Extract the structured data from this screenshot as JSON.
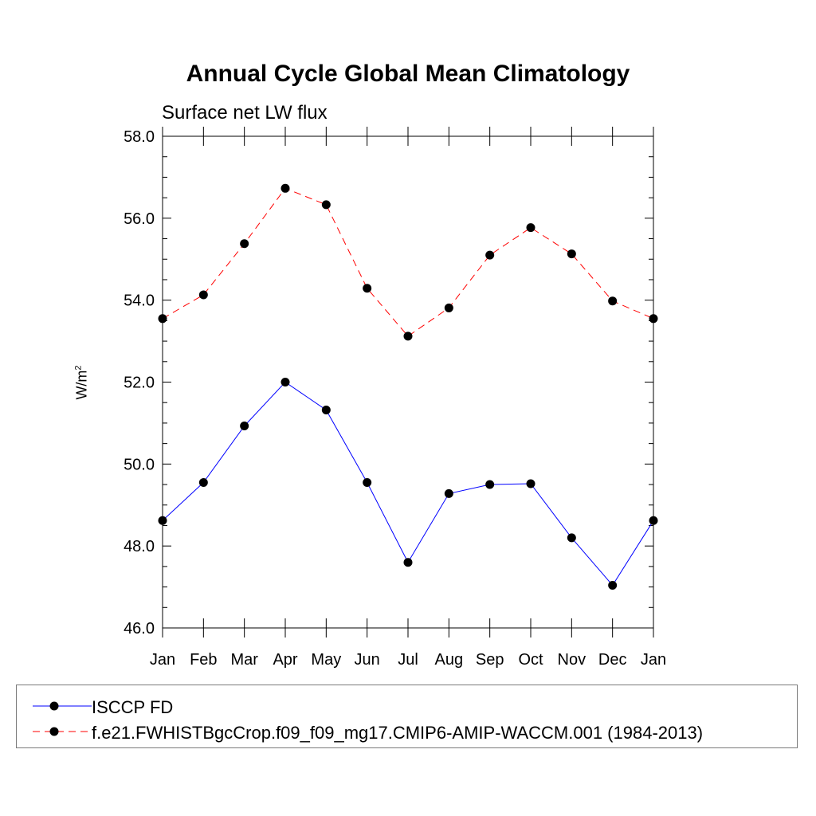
{
  "chart_data": {
    "type": "line",
    "title": "Annual Cycle Global Mean Climatology",
    "subtitle": "Surface net LW flux",
    "ylabel": "W/m",
    "ylabel_superscript": "2",
    "categories": [
      "Jan",
      "Feb",
      "Mar",
      "Apr",
      "May",
      "Jun",
      "Jul",
      "Aug",
      "Sep",
      "Oct",
      "Nov",
      "Dec",
      "Jan"
    ],
    "ylim": [
      46.0,
      58.0
    ],
    "yticks": [
      "46.0",
      "48.0",
      "50.0",
      "52.0",
      "54.0",
      "56.0",
      "58.0"
    ],
    "series": [
      {
        "name": "ISCCP FD",
        "color": "#0000ff",
        "style": "solid",
        "values": [
          48.62,
          49.55,
          50.93,
          52.0,
          51.32,
          49.55,
          47.6,
          49.28,
          49.5,
          49.52,
          48.2,
          47.04,
          48.62
        ]
      },
      {
        "name": "f.e21.FWHISTBgcCrop.f09_f09_mg17.CMIP6-AMIP-WACCM.001 (1984-2013)",
        "color": "#ff0000",
        "style": "dashed",
        "values": [
          53.55,
          54.13,
          55.38,
          56.73,
          56.33,
          54.29,
          53.12,
          53.81,
          55.1,
          55.77,
          55.13,
          53.98,
          53.55
        ]
      }
    ],
    "grid": false,
    "legend_placement": "bottom"
  }
}
